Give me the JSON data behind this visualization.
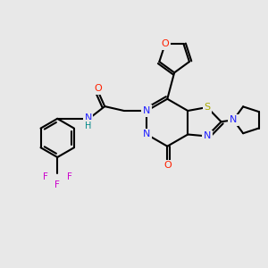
{
  "bg_color": "#e8e8e8",
  "figsize": [
    3.0,
    3.0
  ],
  "dpi": 100,
  "colors": {
    "C": "#000000",
    "N": "#2020ff",
    "O": "#ff2000",
    "S": "#aaaa00",
    "F": "#cc00cc",
    "H": "#008888"
  }
}
